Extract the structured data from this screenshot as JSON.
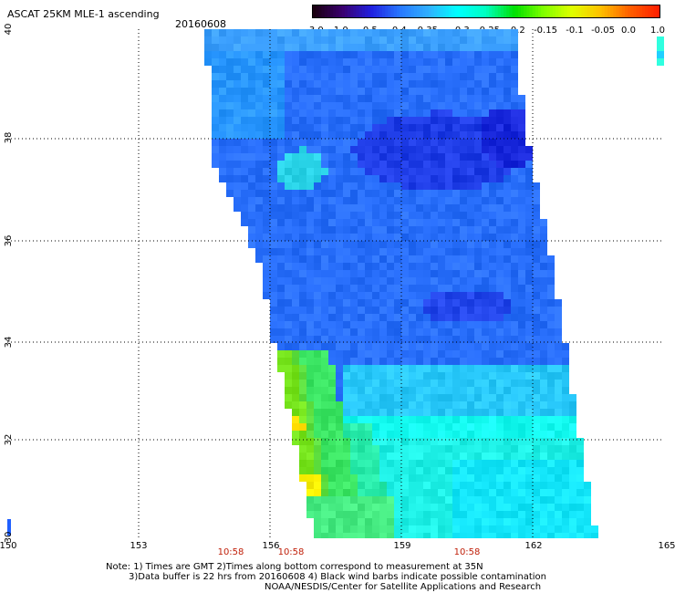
{
  "title": "ASCAT 25KM MLE-1 ascending",
  "date": "20160608",
  "colorbar": {
    "labels": [
      "-3.0",
      "-1.0",
      "-0.5",
      "-0.4",
      "-0.35",
      "-0.3",
      "-0.25",
      "-0.2",
      "-0.15",
      "-0.1",
      "-0.05",
      "0.0",
      "1.0"
    ],
    "colors": [
      "#1a0010",
      "#3a0070",
      "#2020e0",
      "#2878ff",
      "#30b0ff",
      "#00ffff",
      "#00ffc0",
      "#00e000",
      "#80ff00",
      "#e0ff00",
      "#ffc000",
      "#ff6000",
      "#ff2000"
    ]
  },
  "map": {
    "lat_labels": [
      "40",
      "38",
      "36",
      "34",
      "32",
      "30"
    ],
    "lon_labels": [
      "150",
      "153",
      "156",
      "159",
      "162",
      "165"
    ],
    "time_labels": [
      "10:58",
      "10:58",
      "10:58"
    ]
  },
  "notes": {
    "line1": "Note: 1) Times are GMT 2)Times along bottom correspond to measurement at 35N",
    "line2": "3)Data buffer is 22 hrs from 20160608 4) Black wind barbs indicate possible contamination",
    "line3": "NOAA/NESDIS/Center for Satellite Applications and Research"
  }
}
